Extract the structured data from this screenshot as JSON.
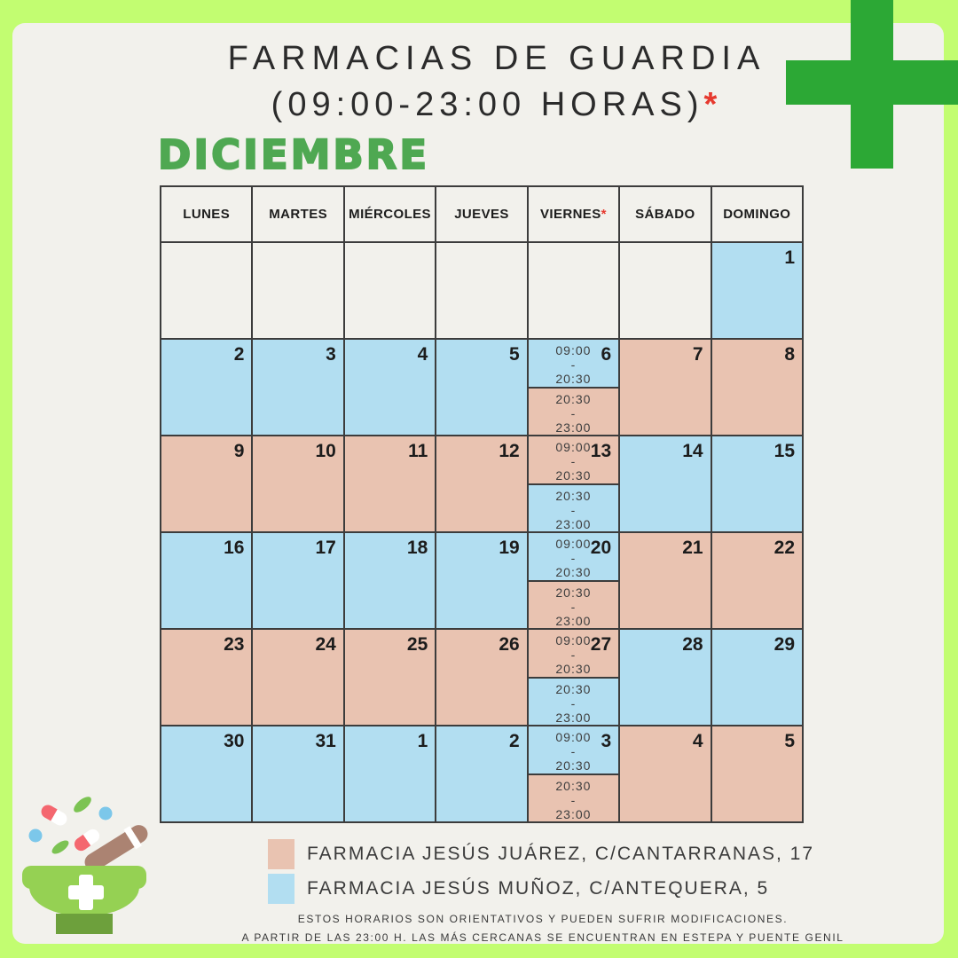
{
  "header": {
    "title": "FARMACIAS DE GUARDIA",
    "subtitle": "(09:00-23:00 HORAS)",
    "subtitle_mark": "*"
  },
  "month": "DICIEMBRE",
  "calendar": {
    "weekday_headers": [
      {
        "label": "LUNES"
      },
      {
        "label": "MARTES"
      },
      {
        "label": "MIÉRCOLES"
      },
      {
        "label": "JUEVES"
      },
      {
        "label": "VIERNES",
        "mark": "*"
      },
      {
        "label": "SÁBADO"
      },
      {
        "label": "DOMINGO"
      }
    ],
    "weeks": [
      [
        {
          "day": "",
          "color": "empty"
        },
        {
          "day": "",
          "color": "empty"
        },
        {
          "day": "",
          "color": "empty"
        },
        {
          "day": "",
          "color": "empty"
        },
        {
          "day": "",
          "color": "empty"
        },
        {
          "day": "",
          "color": "empty"
        },
        {
          "day": "1",
          "color": "blue"
        }
      ],
      [
        {
          "day": "2",
          "color": "blue"
        },
        {
          "day": "3",
          "color": "blue"
        },
        {
          "day": "4",
          "color": "blue"
        },
        {
          "day": "5",
          "color": "blue"
        },
        {
          "day": "6",
          "split": {
            "top": {
              "color": "blue",
              "lines": [
                "09:00",
                "-",
                "20:30"
              ]
            },
            "bottom": {
              "color": "pink",
              "lines": [
                "20:30",
                "-",
                "23:00"
              ]
            }
          }
        },
        {
          "day": "7",
          "color": "pink"
        },
        {
          "day": "8",
          "color": "pink"
        }
      ],
      [
        {
          "day": "9",
          "color": "pink"
        },
        {
          "day": "10",
          "color": "pink"
        },
        {
          "day": "11",
          "color": "pink"
        },
        {
          "day": "12",
          "color": "pink"
        },
        {
          "day": "13",
          "split": {
            "top": {
              "color": "pink",
              "lines": [
                "09:00",
                "-",
                "20:30"
              ]
            },
            "bottom": {
              "color": "blue",
              "lines": [
                "20:30",
                "-",
                "23:00"
              ]
            }
          }
        },
        {
          "day": "14",
          "color": "blue"
        },
        {
          "day": "15",
          "color": "blue"
        }
      ],
      [
        {
          "day": "16",
          "color": "blue"
        },
        {
          "day": "17",
          "color": "blue"
        },
        {
          "day": "18",
          "color": "blue"
        },
        {
          "day": "19",
          "color": "blue"
        },
        {
          "day": "20",
          "split": {
            "top": {
              "color": "blue",
              "lines": [
                "09:00",
                "-",
                "20:30"
              ]
            },
            "bottom": {
              "color": "pink",
              "lines": [
                "20:30",
                "-",
                "23:00"
              ]
            }
          }
        },
        {
          "day": "21",
          "color": "pink"
        },
        {
          "day": "22",
          "color": "pink"
        }
      ],
      [
        {
          "day": "23",
          "color": "pink"
        },
        {
          "day": "24",
          "color": "pink"
        },
        {
          "day": "25",
          "color": "pink"
        },
        {
          "day": "26",
          "color": "pink"
        },
        {
          "day": "27",
          "split": {
            "top": {
              "color": "pink",
              "lines": [
                "09:00",
                "-",
                "20:30"
              ]
            },
            "bottom": {
              "color": "blue",
              "lines": [
                "20:30",
                "-",
                "23:00"
              ]
            }
          }
        },
        {
          "day": "28",
          "color": "blue"
        },
        {
          "day": "29",
          "color": "blue"
        }
      ],
      [
        {
          "day": "30",
          "color": "blue"
        },
        {
          "day": "31",
          "color": "blue"
        },
        {
          "day": "1",
          "color": "blue"
        },
        {
          "day": "2",
          "color": "blue"
        },
        {
          "day": "3",
          "split": {
            "top": {
              "color": "blue",
              "lines": [
                "09:00",
                "-",
                "20:30"
              ]
            },
            "bottom": {
              "color": "pink",
              "lines": [
                "20:30",
                "-",
                "23:00"
              ]
            }
          }
        },
        {
          "day": "4",
          "color": "pink"
        },
        {
          "day": "5",
          "color": "pink"
        }
      ]
    ]
  },
  "legend": {
    "items": [
      {
        "swatch": "pink",
        "label": "FARMACIA JESÚS JUÁREZ, C/CANTARRANAS, 17"
      },
      {
        "swatch": "blue",
        "label": "FARMACIA JESÚS MUÑOZ, C/ANTEQUERA, 5"
      }
    ]
  },
  "footer": {
    "line1": "ESTOS HORARIOS SON ORIENTATIVOS Y PUEDEN SUFRIR MODIFICACIONES.",
    "line2": "A PARTIR DE LAS 23:00 H. LAS MÁS CERCANAS SE ENCUENTRAN EN ESTEPA Y PUENTE GENIL"
  },
  "icons": {
    "pharmacy_cross": "pharmacy-cross-icon",
    "mortar_pestle": "mortar-pestle-icon"
  },
  "colors": {
    "frame_green": "#C2FD71",
    "background": "#F2F1EC",
    "cross_green": "#2CA835",
    "month_green": "#4FA852",
    "cell_blue": "#B2DEF1",
    "cell_pink": "#E9C3B1",
    "asterisk_red": "#E6392E",
    "grid_line": "#3C3C3C"
  }
}
